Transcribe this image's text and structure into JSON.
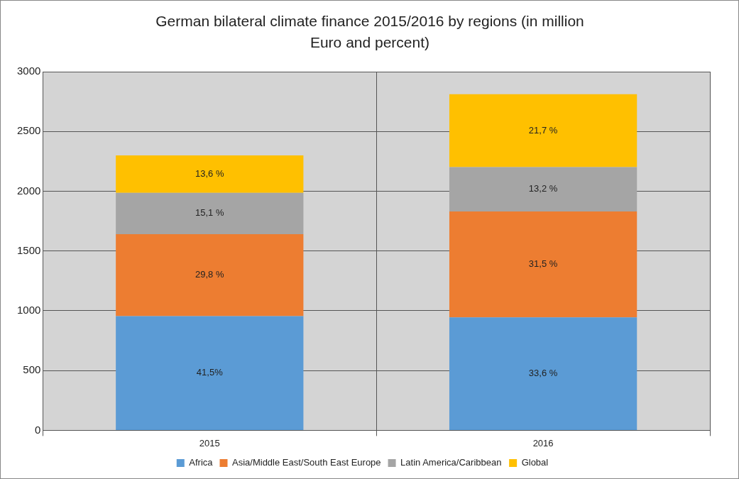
{
  "chart_data": {
    "type": "bar",
    "title": "German bilateral climate finance 2015/2016 by regions (in million Euro and percent)",
    "categories": [
      "2015",
      "2016"
    ],
    "stacked": true,
    "series": [
      {
        "name": "Africa",
        "color": "#5b9bd5",
        "values": [
          955,
          945
        ]
      },
      {
        "name": "Asia/Middle East/South East Europe",
        "color": "#ed7d31",
        "values": [
          685,
          885
        ]
      },
      {
        "name": "Latin America/Caribbean",
        "color": "#a5a5a5",
        "values": [
          347,
          371
        ]
      },
      {
        "name": "Global",
        "color": "#ffc000",
        "values": [
          313,
          610
        ]
      }
    ],
    "annotations": [
      "41,5%",
      "29,8 %",
      "15,1 %",
      "13,6 %",
      "33,6 %",
      "31,5 %",
      "13,2 %",
      "21,7 %"
    ],
    "ylim": [
      0,
      3000
    ],
    "yticks": [
      0,
      500,
      1000,
      1500,
      2000,
      2500,
      3000
    ],
    "grid": true,
    "legend": "bottom"
  }
}
